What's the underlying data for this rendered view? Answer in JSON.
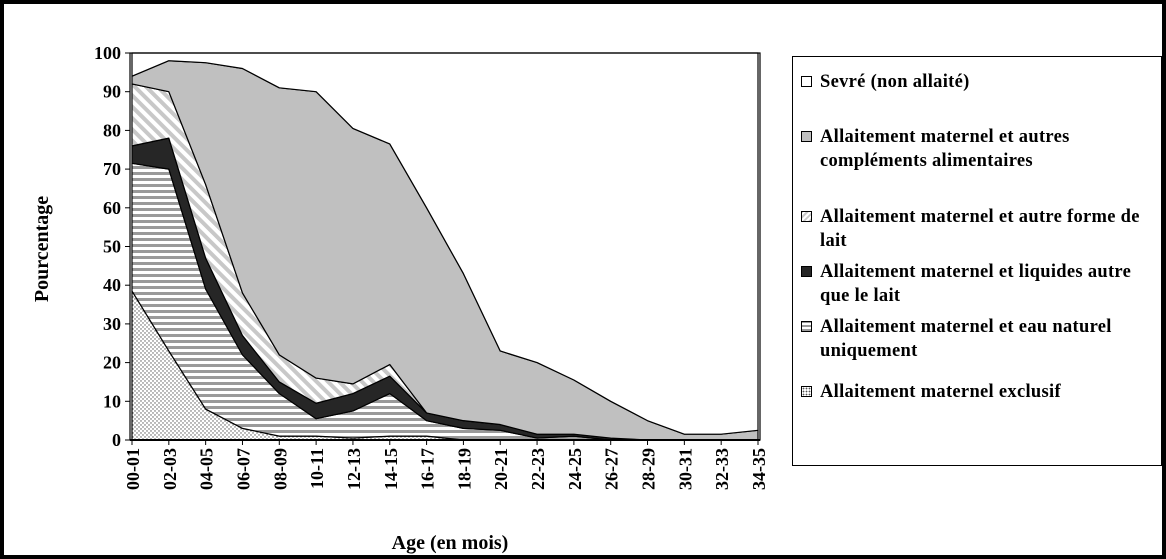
{
  "chart_data": {
    "type": "area",
    "stacked": true,
    "xlabel": "Age (en mois)",
    "ylabel": "Pourcentage",
    "ylim": [
      0,
      100
    ],
    "yticks": [
      0,
      10,
      20,
      30,
      40,
      50,
      60,
      70,
      80,
      90,
      100
    ],
    "categories": [
      "00-01",
      "02-03",
      "04-05",
      "06-07",
      "08-09",
      "10-11",
      "12-13",
      "14-15",
      "16-17",
      "18-19",
      "20-21",
      "22-23",
      "24-25",
      "26-27",
      "28-29",
      "30-31",
      "32-33",
      "34-35"
    ],
    "legend_position": "right",
    "series": [
      {
        "name": "Allaitement maternel exclusif",
        "pattern": "dots",
        "color": "#ffffff",
        "values": [
          38.5,
          23,
          8,
          3,
          1,
          1,
          0.5,
          1,
          1,
          0,
          0,
          0,
          0,
          0,
          0,
          0,
          0,
          0
        ]
      },
      {
        "name": "Allaitement maternel et eau naturel uniquement",
        "pattern": "hstripes",
        "color": "#bfbfbf",
        "values": [
          33,
          47,
          31,
          19,
          11,
          4.5,
          7,
          11,
          4,
          3,
          2.5,
          0.5,
          1,
          0,
          0,
          0,
          0,
          0
        ]
      },
      {
        "name": "Allaitement maternel et liquides autre que le lait",
        "pattern": "solid",
        "color": "#262626",
        "values": [
          4.5,
          8,
          8,
          5,
          3,
          4,
          4.5,
          4.5,
          2,
          2,
          1.5,
          1,
          0.5,
          0.5,
          0,
          0,
          0,
          0
        ]
      },
      {
        "name": "Allaitement maternel et autre forme de lait",
        "pattern": "diagonal",
        "color": "#bfbfbf",
        "values": [
          16,
          12,
          19,
          11,
          7,
          6.5,
          2.5,
          3,
          0,
          0,
          0,
          0,
          0,
          0,
          0,
          0,
          0,
          0
        ]
      },
      {
        "name": "Allaitement maternel et autres compléments alimentaires",
        "pattern": "solid",
        "color": "#c0c0c0",
        "values": [
          2,
          8,
          31.5,
          58,
          69,
          74,
          66,
          57,
          53,
          38,
          19,
          18.5,
          14,
          9.5,
          5,
          1.5,
          1.5,
          2.5
        ]
      },
      {
        "name": "Sevré (non allaité)",
        "pattern": "solid",
        "color": "#ffffff",
        "values": [
          6,
          2,
          2.5,
          4,
          9,
          10,
          19.5,
          23.5,
          40,
          57,
          77,
          80,
          84.5,
          90,
          95,
          98.5,
          98.5,
          97.5
        ]
      }
    ]
  }
}
